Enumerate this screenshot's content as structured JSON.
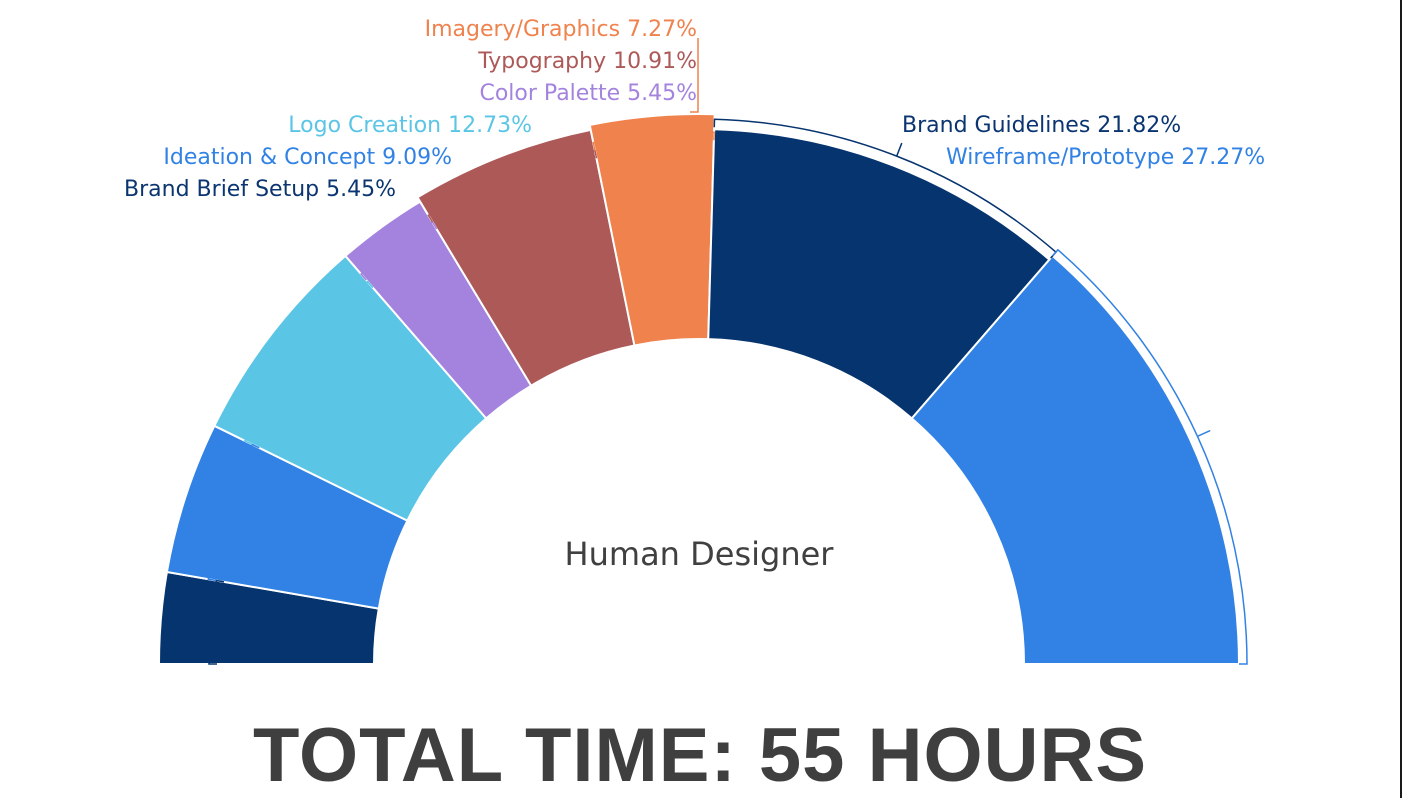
{
  "chart_data": {
    "type": "pie",
    "style": "semicircle-donut",
    "center_label": "Human Designer",
    "total_label": "TOTAL TIME: 55 HOURS",
    "slices": [
      {
        "name": "Brand Brief Setup",
        "percent": 5.45,
        "label": "Brand Brief Setup 5.45%",
        "color": "#06346f"
      },
      {
        "name": "Ideation & Concept",
        "percent": 9.09,
        "label": "Ideation & Concept 9.09%",
        "color": "#3182e4"
      },
      {
        "name": "Logo Creation",
        "percent": 12.73,
        "label": "Logo Creation 12.73%",
        "color": "#5bc5e6"
      },
      {
        "name": "Color Palette",
        "percent": 5.45,
        "label": "Color Palette 5.45%",
        "color": "#a383de"
      },
      {
        "name": "Typography",
        "percent": 10.91,
        "label": "Typography 10.91%",
        "color": "#ad5958"
      },
      {
        "name": "Imagery/Graphics",
        "percent": 7.27,
        "label": "Imagery/Graphics 7.27%",
        "color": "#ef824d"
      },
      {
        "name": "Brand Guidelines",
        "percent": 21.82,
        "label": "Brand Guidelines 21.82%",
        "color": "#06346f"
      },
      {
        "name": "Wireframe/Prototype",
        "percent": 27.27,
        "label": "Wireframe/Prototype 27.27%",
        "color": "#3182e4"
      }
    ]
  }
}
